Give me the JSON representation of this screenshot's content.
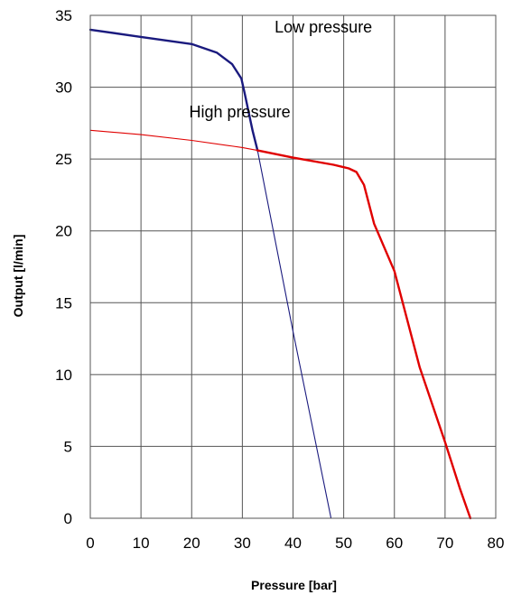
{
  "chart_data": {
    "type": "line",
    "xlabel": "Pressure [bar]",
    "ylabel": "Output [l/min]",
    "xlim": [
      0,
      80
    ],
    "ylim": [
      0,
      35
    ],
    "xticks": [
      0,
      10,
      20,
      30,
      40,
      50,
      60,
      70,
      80
    ],
    "yticks": [
      0,
      5,
      10,
      15,
      20,
      25,
      30,
      35
    ],
    "grid": true,
    "annotations": [
      {
        "text": "Low pressure",
        "x": 46,
        "y": 33.8
      },
      {
        "text": "High pressure",
        "x": 29.5,
        "y": 27.9
      }
    ],
    "series": [
      {
        "color": "#1a1a7e",
        "style": "thin",
        "points": [
          [
            0,
            34
          ],
          [
            10,
            33.5
          ],
          [
            20,
            33
          ],
          [
            25,
            32.4
          ],
          [
            28,
            31.6
          ],
          [
            29.8,
            30.6
          ],
          [
            30.5,
            29.5
          ],
          [
            33,
            25.6
          ],
          [
            40,
            13
          ],
          [
            47.5,
            0
          ]
        ]
      },
      {
        "color": "#1a1a7e",
        "style": "thick",
        "points": [
          [
            0,
            34
          ],
          [
            10,
            33.5
          ],
          [
            20,
            33
          ],
          [
            25,
            32.4
          ],
          [
            28,
            31.6
          ],
          [
            29.8,
            30.6
          ],
          [
            30.5,
            29.5
          ],
          [
            32,
            27
          ],
          [
            33,
            25.6
          ]
        ]
      },
      {
        "color": "#e00000",
        "style": "thin",
        "points": [
          [
            0,
            27
          ],
          [
            10,
            26.7
          ],
          [
            20,
            26.3
          ],
          [
            30,
            25.8
          ],
          [
            33,
            25.6
          ]
        ]
      },
      {
        "color": "#e00000",
        "style": "thick",
        "points": [
          [
            33,
            25.6
          ],
          [
            40,
            25.1
          ],
          [
            48,
            24.6
          ],
          [
            51,
            24.35
          ],
          [
            52.5,
            24.1
          ],
          [
            54,
            23.2
          ],
          [
            56,
            20.5
          ],
          [
            60,
            17.2
          ],
          [
            65,
            10.5
          ],
          [
            70,
            5.3
          ],
          [
            73,
            2
          ],
          [
            75,
            0
          ]
        ]
      }
    ]
  }
}
